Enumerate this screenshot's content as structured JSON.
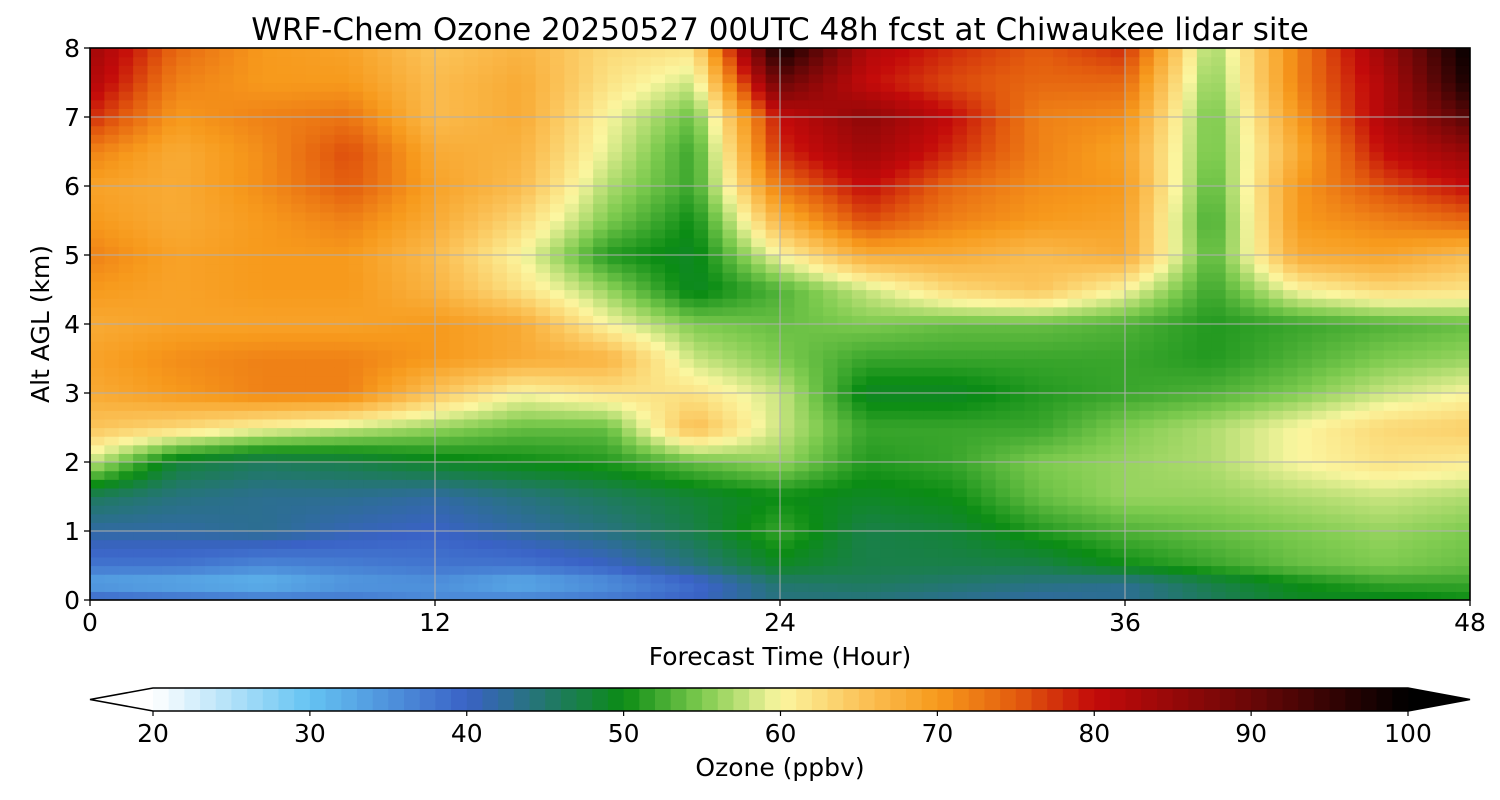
{
  "chart_data": {
    "type": "heatmap",
    "title": "WRF-Chem Ozone  20250527 00UTC 48h fcst at Chiwaukee lidar site",
    "xlabel": "Forecast Time (Hour)",
    "ylabel": "Alt AGL (km)",
    "xlim": [
      0,
      48
    ],
    "ylim": [
      0,
      8
    ],
    "x_ticks": [
      0,
      12,
      24,
      36,
      48
    ],
    "y_ticks": [
      0,
      1,
      2,
      3,
      4,
      5,
      6,
      7,
      8
    ],
    "grid": true,
    "colorbar": {
      "label": "Ozone  (ppbv)",
      "min": 20,
      "max": 100,
      "ticks": [
        20,
        30,
        40,
        50,
        60,
        70,
        80,
        90,
        100
      ],
      "extend": "both",
      "stops": [
        {
          "value": 20,
          "color": "#ffffff"
        },
        {
          "value": 30,
          "color": "#64c3f2"
        },
        {
          "value": 40,
          "color": "#3a62c6"
        },
        {
          "value": 50,
          "color": "#0b8c14"
        },
        {
          "value": 55,
          "color": "#7ecb4f"
        },
        {
          "value": 60,
          "color": "#fbf6a0"
        },
        {
          "value": 65,
          "color": "#fbc45a"
        },
        {
          "value": 70,
          "color": "#f79a1c"
        },
        {
          "value": 75,
          "color": "#e35c0e"
        },
        {
          "value": 80,
          "color": "#c30a0a"
        },
        {
          "value": 90,
          "color": "#6a0707"
        },
        {
          "value": 100,
          "color": "#000000"
        }
      ]
    },
    "x": [
      0,
      3,
      6,
      9,
      12,
      15,
      18,
      21,
      24,
      27,
      30,
      33,
      36,
      39,
      42,
      45,
      48
    ],
    "y": [
      0,
      0.25,
      0.5,
      1,
      1.5,
      2,
      2.5,
      3,
      3.5,
      4,
      4.5,
      5,
      5.5,
      6,
      6.5,
      7,
      7.5,
      8
    ],
    "z": [
      [
        40,
        39,
        38,
        38,
        36,
        37,
        38,
        40,
        44,
        44,
        43,
        42,
        43,
        46,
        49,
        49,
        50
      ],
      [
        33,
        32,
        31,
        34,
        35,
        32,
        35,
        39,
        45,
        46,
        45,
        44,
        43,
        47,
        50,
        52,
        52
      ],
      [
        38,
        38,
        36,
        37,
        38,
        38,
        40,
        44,
        49,
        47,
        47,
        47,
        50,
        52,
        54,
        55,
        54
      ],
      [
        42,
        42,
        43,
        41,
        40,
        42,
        44,
        47,
        52,
        47,
        48,
        51,
        53,
        54,
        55,
        56,
        55
      ],
      [
        46,
        44,
        43,
        43,
        42,
        44,
        46,
        48,
        50,
        49,
        50,
        54,
        56,
        56,
        57,
        58,
        57
      ],
      [
        58,
        48,
        46,
        47,
        49,
        50,
        51,
        54,
        56,
        51,
        52,
        55,
        56,
        57,
        60,
        62,
        61
      ],
      [
        65,
        63,
        60,
        58,
        56,
        54,
        54,
        66,
        58,
        52,
        52,
        52,
        55,
        57,
        60,
        63,
        64
      ],
      [
        68,
        70,
        72,
        72,
        65,
        60,
        62,
        62,
        58,
        49,
        49,
        51,
        52,
        53,
        55,
        58,
        60
      ],
      [
        69,
        71,
        72,
        72,
        70,
        68,
        67,
        58,
        55,
        52,
        52,
        52,
        52,
        51,
        53,
        55,
        56
      ],
      [
        68,
        69,
        69,
        69,
        70,
        68,
        60,
        55,
        54,
        55,
        54,
        54,
        53,
        51,
        52,
        53,
        54
      ],
      [
        70,
        69,
        70,
        70,
        67,
        62,
        56,
        49,
        53,
        58,
        63,
        65,
        60,
        52,
        60,
        63,
        62
      ],
      [
        72,
        69,
        70,
        70,
        66,
        60,
        51,
        49,
        60,
        68,
        68,
        66,
        68,
        53,
        68,
        69,
        66
      ],
      [
        70,
        68,
        70,
        72,
        68,
        63,
        55,
        50,
        67,
        76,
        72,
        70,
        69,
        52,
        70,
        72,
        74
      ],
      [
        69,
        68,
        71,
        75,
        69,
        66,
        57,
        52,
        73,
        80,
        74,
        71,
        70,
        53,
        70,
        76,
        80
      ],
      [
        72,
        68,
        71,
        76,
        68,
        67,
        59,
        52,
        78,
        84,
        78,
        72,
        69,
        54,
        68,
        80,
        85
      ],
      [
        78,
        70,
        72,
        73,
        66,
        68,
        60,
        54,
        80,
        86,
        80,
        72,
        71,
        54,
        70,
        82,
        92
      ],
      [
        82,
        72,
        70,
        70,
        66,
        68,
        62,
        58,
        90,
        80,
        76,
        74,
        74,
        55,
        72,
        82,
        98
      ],
      [
        84,
        74,
        70,
        69,
        65,
        67,
        63,
        62,
        99,
        82,
        78,
        75,
        78,
        56,
        72,
        84,
        100
      ]
    ]
  }
}
